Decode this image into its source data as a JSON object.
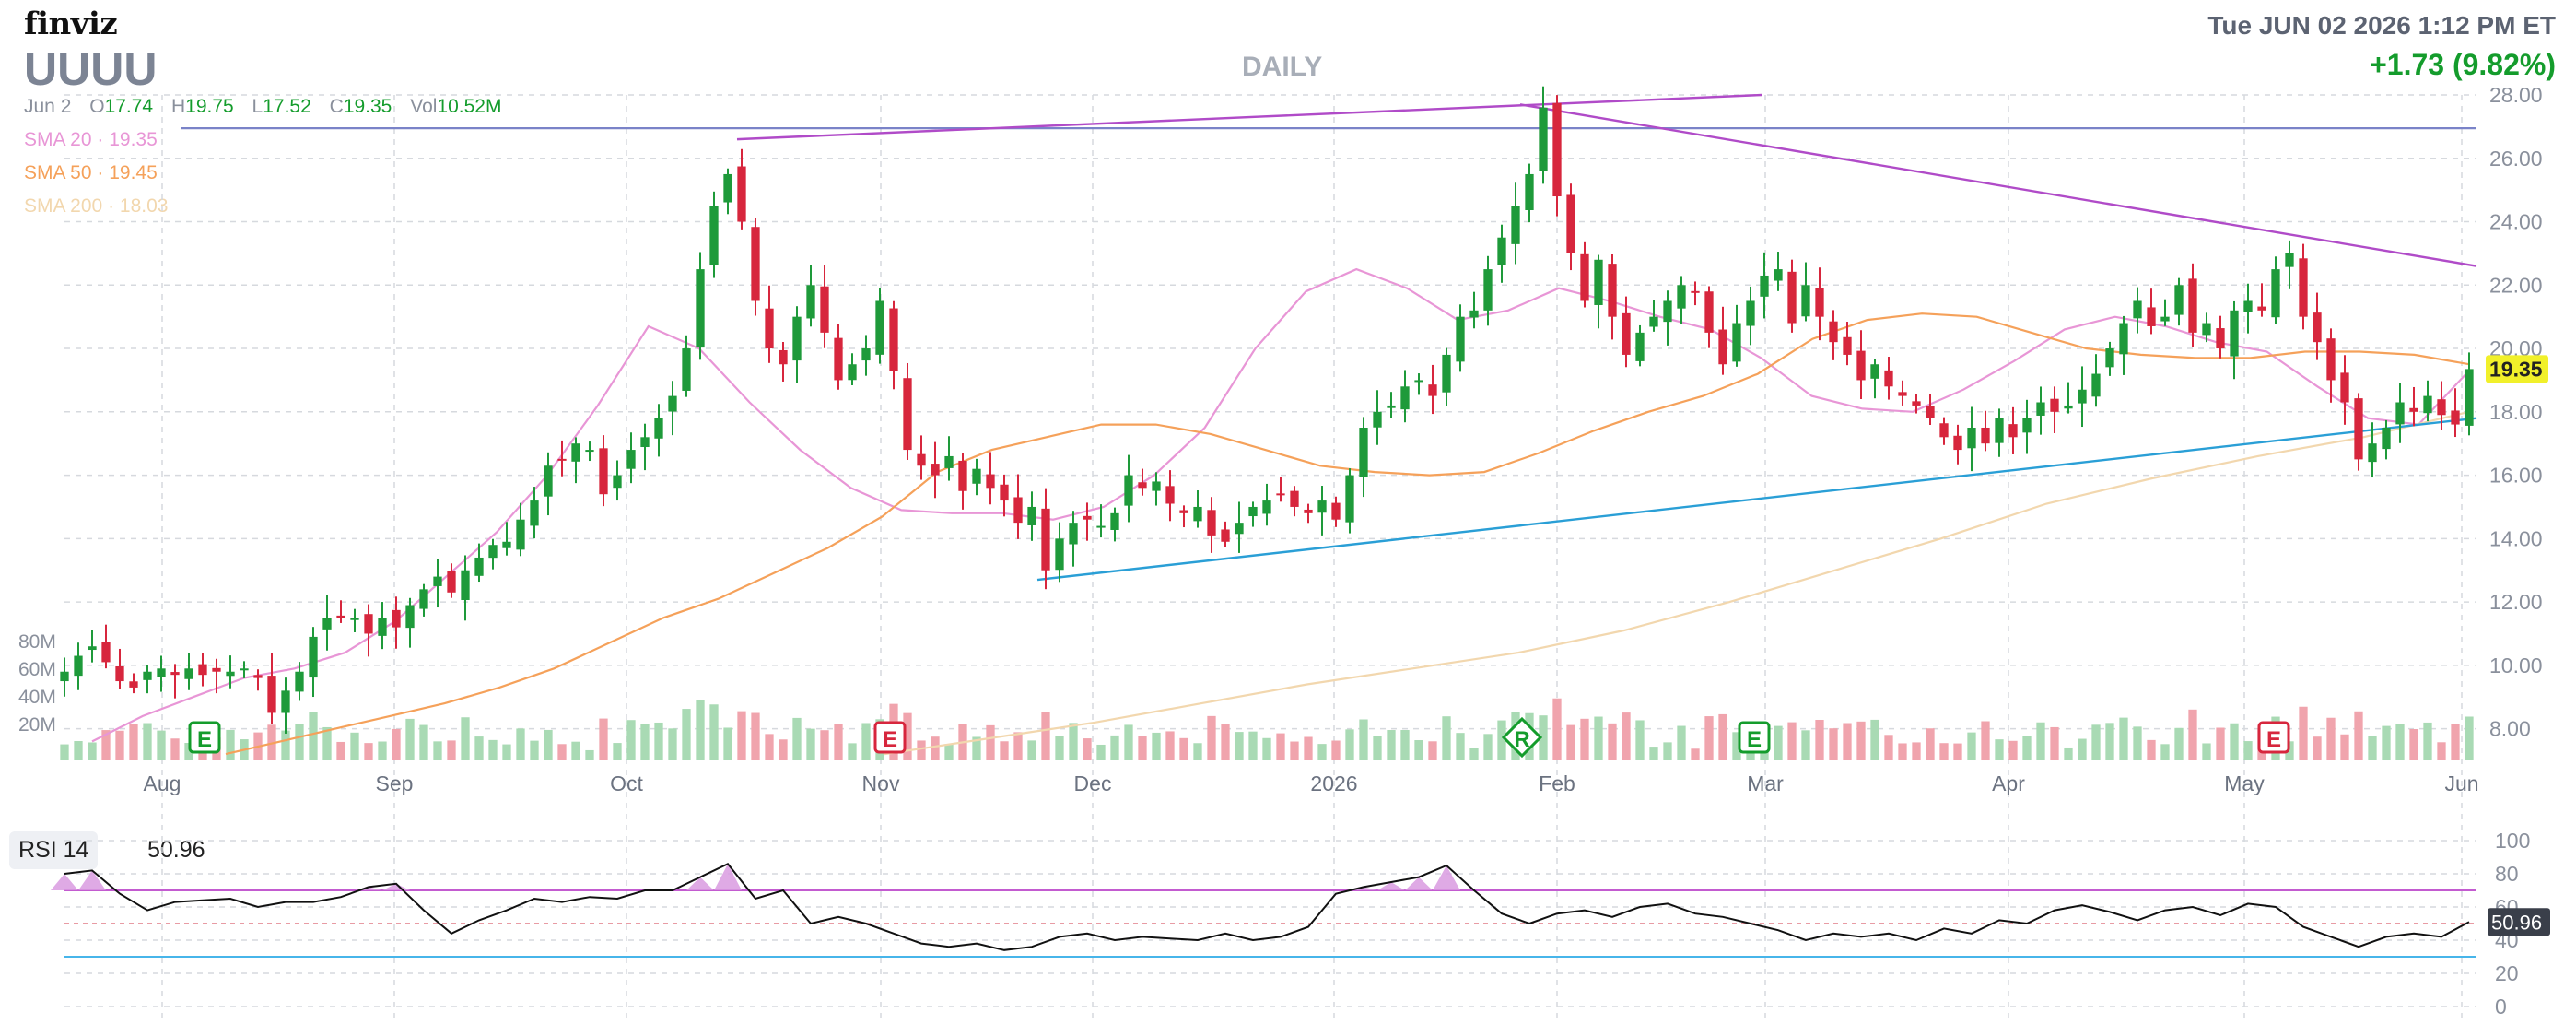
{
  "header": {
    "logo": "finviz",
    "ticker": "UUUU",
    "timeframe": "DAILY",
    "datetime": "Tue JUN 02 2026 1:12 PM ET",
    "change": "+1.73 (9.82%)"
  },
  "ohlc": {
    "date": "Jun 2",
    "open_label": "O",
    "open": "17.74",
    "high_label": "H",
    "high": "19.75",
    "low_label": "L",
    "low": "17.52",
    "close_label": "C",
    "close": "19.35",
    "volume_label": "Vol",
    "volume": "10.52M"
  },
  "sma": [
    {
      "label": "SMA 20",
      "value": "19.35",
      "color": "#e896d6"
    },
    {
      "label": "SMA 50",
      "value": "19.45",
      "color": "#f5a15a"
    },
    {
      "label": "SMA 200",
      "value": "18.03",
      "color": "#f5dcb0"
    }
  ],
  "colors": {
    "up": "#1e9a3a",
    "down": "#d7263d",
    "vol_up": "#a9dab4",
    "vol_down": "#f0a4ad",
    "trend_purple": "#b04bc8",
    "trend_blue": "#2a9fd6",
    "resistance": "#7a83c8",
    "rsi_over": "#c35bd0",
    "rsi_under": "#47b5ea",
    "price_tag": "#f1f02a"
  },
  "chart_data": {
    "type": "candlestick",
    "timeframe": "DAILY",
    "x_labels": [
      "Aug",
      "Sep",
      "Oct",
      "Nov",
      "Dec",
      "2026",
      "Feb",
      "Mar",
      "Apr",
      "May",
      "Jun"
    ],
    "y_ticks": [
      "28.00",
      "26.00",
      "24.00",
      "22.00",
      "20.00",
      "18.00",
      "16.00",
      "14.00",
      "12.00",
      "10.00",
      "8.00"
    ],
    "ylim": [
      7,
      28
    ],
    "last_price": "19.35",
    "volume_ticks": [
      "80M",
      "60M",
      "40M",
      "20M"
    ],
    "earnings_markers": [
      "E",
      "E",
      "R",
      "E",
      "E"
    ],
    "series": [
      {
        "name": "price (approx. closes)",
        "values": [
          9.8,
          10.3,
          10.6,
          10.1,
          9.5,
          9.3,
          9.8,
          9.9,
          9.7,
          9.9,
          9.7,
          9.8,
          9.8,
          9.9,
          9.6,
          8.5,
          9.2,
          9.8,
          10.9,
          11.5,
          11.5,
          11.5,
          11.0,
          11.5,
          11.2,
          11.9,
          12.4,
          12.8,
          12.3,
          13.0,
          13.4,
          13.8,
          13.9,
          14.6,
          15.2,
          16.3,
          16.5,
          17.0,
          16.8,
          15.4,
          16.0,
          16.8,
          17.2,
          17.8,
          18.5,
          20.0,
          22.5,
          24.5,
          25.5,
          24.0,
          21.5,
          20.0,
          19.5,
          21.0,
          22.0,
          20.5,
          19.0,
          19.5,
          20.0,
          21.5,
          19.3,
          16.8,
          16.3,
          16.0,
          16.6,
          15.5,
          16.2,
          15.6,
          15.2,
          14.5,
          15.0,
          13.0,
          14.0,
          14.5,
          14.6,
          14.4,
          14.8,
          16.0,
          15.6,
          15.8,
          15.1,
          14.8,
          15.0,
          14.1,
          13.9,
          14.5,
          15.0,
          15.2,
          15.4,
          15.0,
          14.8,
          15.2,
          14.6,
          16.0,
          17.5,
          18.0,
          18.2,
          18.8,
          19.0,
          18.5,
          19.8,
          21.0,
          21.2,
          22.5,
          23.5,
          24.5,
          25.5,
          27.6,
          24.8,
          23.0,
          21.5,
          22.8,
          21.0,
          19.8,
          20.5,
          21.0,
          21.5,
          22.0,
          21.8,
          20.5,
          19.5,
          20.8,
          21.5,
          22.3,
          22.5,
          20.8,
          22.0,
          21.0,
          20.2,
          19.8,
          19.0,
          19.5,
          18.8,
          18.5,
          18.2,
          17.8,
          17.2,
          16.8,
          17.5,
          17.0,
          17.8,
          17.2,
          17.8,
          18.3,
          18.0,
          18.2,
          18.7,
          19.2,
          20.0,
          20.8,
          21.5,
          20.7,
          21.0,
          22.0,
          20.5,
          20.8,
          20.0,
          21.2,
          21.5,
          21.2,
          22.5,
          23.0,
          21.0,
          20.2,
          19.0,
          18.3,
          16.5,
          17.0,
          17.5,
          18.3,
          18.0,
          18.5,
          17.9,
          17.6,
          19.35
        ]
      },
      {
        "name": "SMA 20",
        "values": [
          7.6,
          8.4,
          9.0,
          9.6,
          9.9,
          10.4,
          11.4,
          12.8,
          14.2,
          16.0,
          18.2,
          20.7,
          20.0,
          18.3,
          16.8,
          15.6,
          14.9,
          14.8,
          14.8,
          14.6,
          15.0,
          16.0,
          17.5,
          20.0,
          21.8,
          22.5,
          21.9,
          20.9,
          21.2,
          21.9,
          21.5,
          21.0,
          20.6,
          19.7,
          18.5,
          18.1,
          18.0,
          18.7,
          19.6,
          20.6,
          21.0,
          20.7,
          20.2,
          19.9,
          18.8,
          17.8,
          17.6,
          19.3
        ]
      },
      {
        "name": "SMA 50",
        "values": [
          7.2,
          7.6,
          8.0,
          8.4,
          8.8,
          9.3,
          9.9,
          10.7,
          11.5,
          12.1,
          12.9,
          13.7,
          14.7,
          16.1,
          16.8,
          17.2,
          17.6,
          17.6,
          17.3,
          16.8,
          16.3,
          16.1,
          16.0,
          16.1,
          16.7,
          17.4,
          18.0,
          18.5,
          19.2,
          20.3,
          20.9,
          21.1,
          21.0,
          20.5,
          20.0,
          19.8,
          19.7,
          19.7,
          19.9,
          19.9,
          19.8,
          19.5
        ]
      },
      {
        "name": "SMA 200",
        "values": [
          7.2,
          7.7,
          8.2,
          8.8,
          9.4,
          9.9,
          10.4,
          11.1,
          12.0,
          13.0,
          14.0,
          15.1,
          15.9,
          16.6,
          17.2,
          18.0
        ]
      },
      {
        "name": "RSI 14",
        "values": [
          80,
          82,
          68,
          58,
          63,
          64,
          65,
          60,
          63,
          63,
          66,
          72,
          74,
          58,
          44,
          52,
          58,
          65,
          63,
          66,
          65,
          70,
          70,
          78,
          86,
          65,
          70,
          50,
          54,
          50,
          44,
          38,
          36,
          38,
          34,
          36,
          42,
          44,
          40,
          42,
          41,
          40,
          44,
          40,
          42,
          48,
          68,
          72,
          75,
          78,
          85,
          70,
          56,
          50,
          56,
          58,
          54,
          60,
          62,
          56,
          54,
          50,
          46,
          40,
          44,
          42,
          44,
          40,
          47,
          44,
          52,
          50,
          58,
          61,
          57,
          52,
          58,
          60,
          55,
          62,
          60,
          48,
          42,
          36,
          42,
          44,
          42,
          50.96
        ]
      }
    ],
    "rsi": {
      "label": "RSI 14",
      "value": "50.96",
      "ticks": [
        "100",
        "80",
        "60",
        "40",
        "20",
        "0"
      ],
      "overbought": 70,
      "oversold": 30
    }
  }
}
